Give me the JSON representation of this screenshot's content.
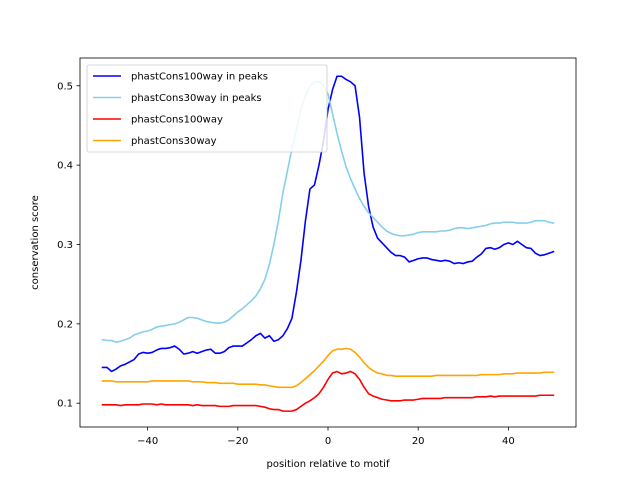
{
  "chart_data": {
    "type": "line",
    "xlabel": "position relative to motif",
    "ylabel": "conservation score",
    "xlim": [
      -55,
      55
    ],
    "ylim": [
      0.07,
      0.535
    ],
    "xticks": [
      -40,
      -20,
      0,
      20,
      40
    ],
    "yticks": [
      0.1,
      0.2,
      0.3,
      0.4,
      0.5
    ],
    "xtick_labels": [
      "−40",
      "−20",
      "0",
      "20",
      "40"
    ],
    "ytick_labels": [
      "0.1",
      "0.2",
      "0.3",
      "0.4",
      "0.5"
    ],
    "grid": false,
    "legend_position": "upper-left",
    "series": [
      {
        "name": "phastCons100way in peaks",
        "color": "#0000ff",
        "x": [
          -50,
          -49,
          -48,
          -47,
          -46,
          -45,
          -44,
          -43,
          -42,
          -41,
          -40,
          -39,
          -38,
          -37,
          -36,
          -35,
          -34,
          -33,
          -32,
          -31,
          -30,
          -29,
          -28,
          -27,
          -26,
          -25,
          -24,
          -23,
          -22,
          -21,
          -20,
          -19,
          -18,
          -17,
          -16,
          -15,
          -14,
          -13,
          -12,
          -11,
          -10,
          -9,
          -8,
          -7,
          -6,
          -5,
          -4,
          -3,
          -2,
          -1,
          0,
          1,
          2,
          3,
          4,
          5,
          6,
          7,
          8,
          9,
          10,
          11,
          12,
          13,
          14,
          15,
          16,
          17,
          18,
          19,
          20,
          21,
          22,
          23,
          24,
          25,
          26,
          27,
          28,
          29,
          30,
          31,
          32,
          33,
          34,
          35,
          36,
          37,
          38,
          39,
          40,
          41,
          42,
          43,
          44,
          45,
          46,
          47,
          48,
          49,
          50
        ],
        "y": [
          0.145,
          0.145,
          0.14,
          0.143,
          0.147,
          0.149,
          0.152,
          0.155,
          0.162,
          0.164,
          0.163,
          0.164,
          0.167,
          0.169,
          0.169,
          0.17,
          0.172,
          0.168,
          0.162,
          0.163,
          0.165,
          0.163,
          0.165,
          0.167,
          0.168,
          0.163,
          0.163,
          0.165,
          0.17,
          0.172,
          0.172,
          0.172,
          0.176,
          0.18,
          0.185,
          0.188,
          0.182,
          0.185,
          0.178,
          0.18,
          0.185,
          0.194,
          0.207,
          0.24,
          0.28,
          0.33,
          0.37,
          0.375,
          0.4,
          0.43,
          0.47,
          0.495,
          0.512,
          0.512,
          0.508,
          0.505,
          0.5,
          0.46,
          0.39,
          0.348,
          0.322,
          0.308,
          0.302,
          0.296,
          0.29,
          0.286,
          0.286,
          0.284,
          0.278,
          0.28,
          0.282,
          0.283,
          0.283,
          0.281,
          0.28,
          0.279,
          0.28,
          0.279,
          0.276,
          0.277,
          0.276,
          0.278,
          0.279,
          0.284,
          0.288,
          0.295,
          0.296,
          0.294,
          0.296,
          0.3,
          0.302,
          0.3,
          0.304,
          0.3,
          0.296,
          0.295,
          0.289,
          0.286,
          0.287,
          0.289,
          0.291
        ]
      },
      {
        "name": "phastCons30way in peaks",
        "color": "#87ceeb",
        "x": [
          -50,
          -49,
          -48,
          -47,
          -46,
          -45,
          -44,
          -43,
          -42,
          -41,
          -40,
          -39,
          -38,
          -37,
          -36,
          -35,
          -34,
          -33,
          -32,
          -31,
          -30,
          -29,
          -28,
          -27,
          -26,
          -25,
          -24,
          -23,
          -22,
          -21,
          -20,
          -19,
          -18,
          -17,
          -16,
          -15,
          -14,
          -13,
          -12,
          -11,
          -10,
          -9,
          -8,
          -7,
          -6,
          -5,
          -4,
          -3,
          -2,
          -1,
          0,
          1,
          2,
          3,
          4,
          5,
          6,
          7,
          8,
          9,
          10,
          11,
          12,
          13,
          14,
          15,
          16,
          17,
          18,
          19,
          20,
          21,
          22,
          23,
          24,
          25,
          26,
          27,
          28,
          29,
          30,
          31,
          32,
          33,
          34,
          35,
          36,
          37,
          38,
          39,
          40,
          41,
          42,
          43,
          44,
          45,
          46,
          47,
          48,
          49,
          50
        ],
        "y": [
          0.18,
          0.179,
          0.179,
          0.177,
          0.178,
          0.18,
          0.182,
          0.186,
          0.188,
          0.19,
          0.191,
          0.193,
          0.196,
          0.197,
          0.198,
          0.199,
          0.2,
          0.202,
          0.205,
          0.208,
          0.208,
          0.207,
          0.205,
          0.203,
          0.202,
          0.201,
          0.201,
          0.202,
          0.205,
          0.21,
          0.215,
          0.219,
          0.224,
          0.229,
          0.235,
          0.244,
          0.256,
          0.275,
          0.3,
          0.33,
          0.365,
          0.393,
          0.42,
          0.445,
          0.47,
          0.488,
          0.5,
          0.505,
          0.505,
          0.5,
          0.49,
          0.465,
          0.44,
          0.418,
          0.398,
          0.383,
          0.37,
          0.358,
          0.348,
          0.34,
          0.334,
          0.328,
          0.322,
          0.317,
          0.314,
          0.312,
          0.311,
          0.311,
          0.312,
          0.313,
          0.315,
          0.316,
          0.316,
          0.316,
          0.316,
          0.317,
          0.317,
          0.318,
          0.32,
          0.321,
          0.321,
          0.32,
          0.321,
          0.322,
          0.323,
          0.324,
          0.326,
          0.327,
          0.327,
          0.328,
          0.328,
          0.328,
          0.327,
          0.327,
          0.327,
          0.328,
          0.33,
          0.33,
          0.33,
          0.328,
          0.327
        ]
      },
      {
        "name": "phastCons100way",
        "color": "#ff0000",
        "x": [
          -50,
          -49,
          -48,
          -47,
          -46,
          -45,
          -44,
          -43,
          -42,
          -41,
          -40,
          -39,
          -38,
          -37,
          -36,
          -35,
          -34,
          -33,
          -32,
          -31,
          -30,
          -29,
          -28,
          -27,
          -26,
          -25,
          -24,
          -23,
          -22,
          -21,
          -20,
          -19,
          -18,
          -17,
          -16,
          -15,
          -14,
          -13,
          -12,
          -11,
          -10,
          -9,
          -8,
          -7,
          -6,
          -5,
          -4,
          -3,
          -2,
          -1,
          0,
          1,
          2,
          3,
          4,
          5,
          6,
          7,
          8,
          9,
          10,
          11,
          12,
          13,
          14,
          15,
          16,
          17,
          18,
          19,
          20,
          21,
          22,
          23,
          24,
          25,
          26,
          27,
          28,
          29,
          30,
          31,
          32,
          33,
          34,
          35,
          36,
          37,
          38,
          39,
          40,
          41,
          42,
          43,
          44,
          45,
          46,
          47,
          48,
          49,
          50
        ],
        "y": [
          0.098,
          0.098,
          0.098,
          0.098,
          0.097,
          0.098,
          0.098,
          0.098,
          0.098,
          0.099,
          0.099,
          0.099,
          0.098,
          0.099,
          0.098,
          0.098,
          0.098,
          0.098,
          0.098,
          0.098,
          0.097,
          0.098,
          0.097,
          0.097,
          0.097,
          0.097,
          0.096,
          0.096,
          0.096,
          0.097,
          0.097,
          0.097,
          0.097,
          0.097,
          0.097,
          0.096,
          0.095,
          0.093,
          0.092,
          0.092,
          0.09,
          0.09,
          0.09,
          0.092,
          0.096,
          0.1,
          0.103,
          0.107,
          0.112,
          0.12,
          0.13,
          0.138,
          0.14,
          0.137,
          0.138,
          0.14,
          0.137,
          0.13,
          0.12,
          0.112,
          0.109,
          0.107,
          0.105,
          0.104,
          0.103,
          0.103,
          0.103,
          0.104,
          0.104,
          0.104,
          0.105,
          0.106,
          0.106,
          0.106,
          0.106,
          0.106,
          0.107,
          0.107,
          0.107,
          0.107,
          0.107,
          0.107,
          0.107,
          0.108,
          0.108,
          0.108,
          0.109,
          0.108,
          0.109,
          0.109,
          0.109,
          0.109,
          0.109,
          0.109,
          0.109,
          0.109,
          0.109,
          0.11,
          0.11,
          0.11,
          0.11
        ]
      },
      {
        "name": "phastCons30way",
        "color": "#ffa500",
        "x": [
          -50,
          -49,
          -48,
          -47,
          -46,
          -45,
          -44,
          -43,
          -42,
          -41,
          -40,
          -39,
          -38,
          -37,
          -36,
          -35,
          -34,
          -33,
          -32,
          -31,
          -30,
          -29,
          -28,
          -27,
          -26,
          -25,
          -24,
          -23,
          -22,
          -21,
          -20,
          -19,
          -18,
          -17,
          -16,
          -15,
          -14,
          -13,
          -12,
          -11,
          -10,
          -9,
          -8,
          -7,
          -6,
          -5,
          -4,
          -3,
          -2,
          -1,
          0,
          1,
          2,
          3,
          4,
          5,
          6,
          7,
          8,
          9,
          10,
          11,
          12,
          13,
          14,
          15,
          16,
          17,
          18,
          19,
          20,
          21,
          22,
          23,
          24,
          25,
          26,
          27,
          28,
          29,
          30,
          31,
          32,
          33,
          34,
          35,
          36,
          37,
          38,
          39,
          40,
          41,
          42,
          43,
          44,
          45,
          46,
          47,
          48,
          49,
          50
        ],
        "y": [
          0.128,
          0.128,
          0.128,
          0.127,
          0.127,
          0.127,
          0.127,
          0.127,
          0.127,
          0.127,
          0.127,
          0.128,
          0.128,
          0.128,
          0.128,
          0.128,
          0.128,
          0.128,
          0.128,
          0.128,
          0.127,
          0.127,
          0.127,
          0.126,
          0.126,
          0.126,
          0.125,
          0.125,
          0.125,
          0.125,
          0.124,
          0.124,
          0.124,
          0.124,
          0.124,
          0.123,
          0.123,
          0.122,
          0.121,
          0.12,
          0.12,
          0.12,
          0.12,
          0.122,
          0.126,
          0.131,
          0.136,
          0.141,
          0.147,
          0.153,
          0.16,
          0.166,
          0.168,
          0.168,
          0.169,
          0.168,
          0.164,
          0.158,
          0.151,
          0.145,
          0.141,
          0.138,
          0.137,
          0.135,
          0.135,
          0.134,
          0.134,
          0.134,
          0.134,
          0.134,
          0.134,
          0.134,
          0.134,
          0.134,
          0.135,
          0.135,
          0.135,
          0.135,
          0.135,
          0.135,
          0.135,
          0.135,
          0.135,
          0.135,
          0.136,
          0.136,
          0.136,
          0.136,
          0.136,
          0.137,
          0.137,
          0.137,
          0.138,
          0.138,
          0.138,
          0.138,
          0.138,
          0.138,
          0.139,
          0.139,
          0.139
        ]
      }
    ]
  }
}
